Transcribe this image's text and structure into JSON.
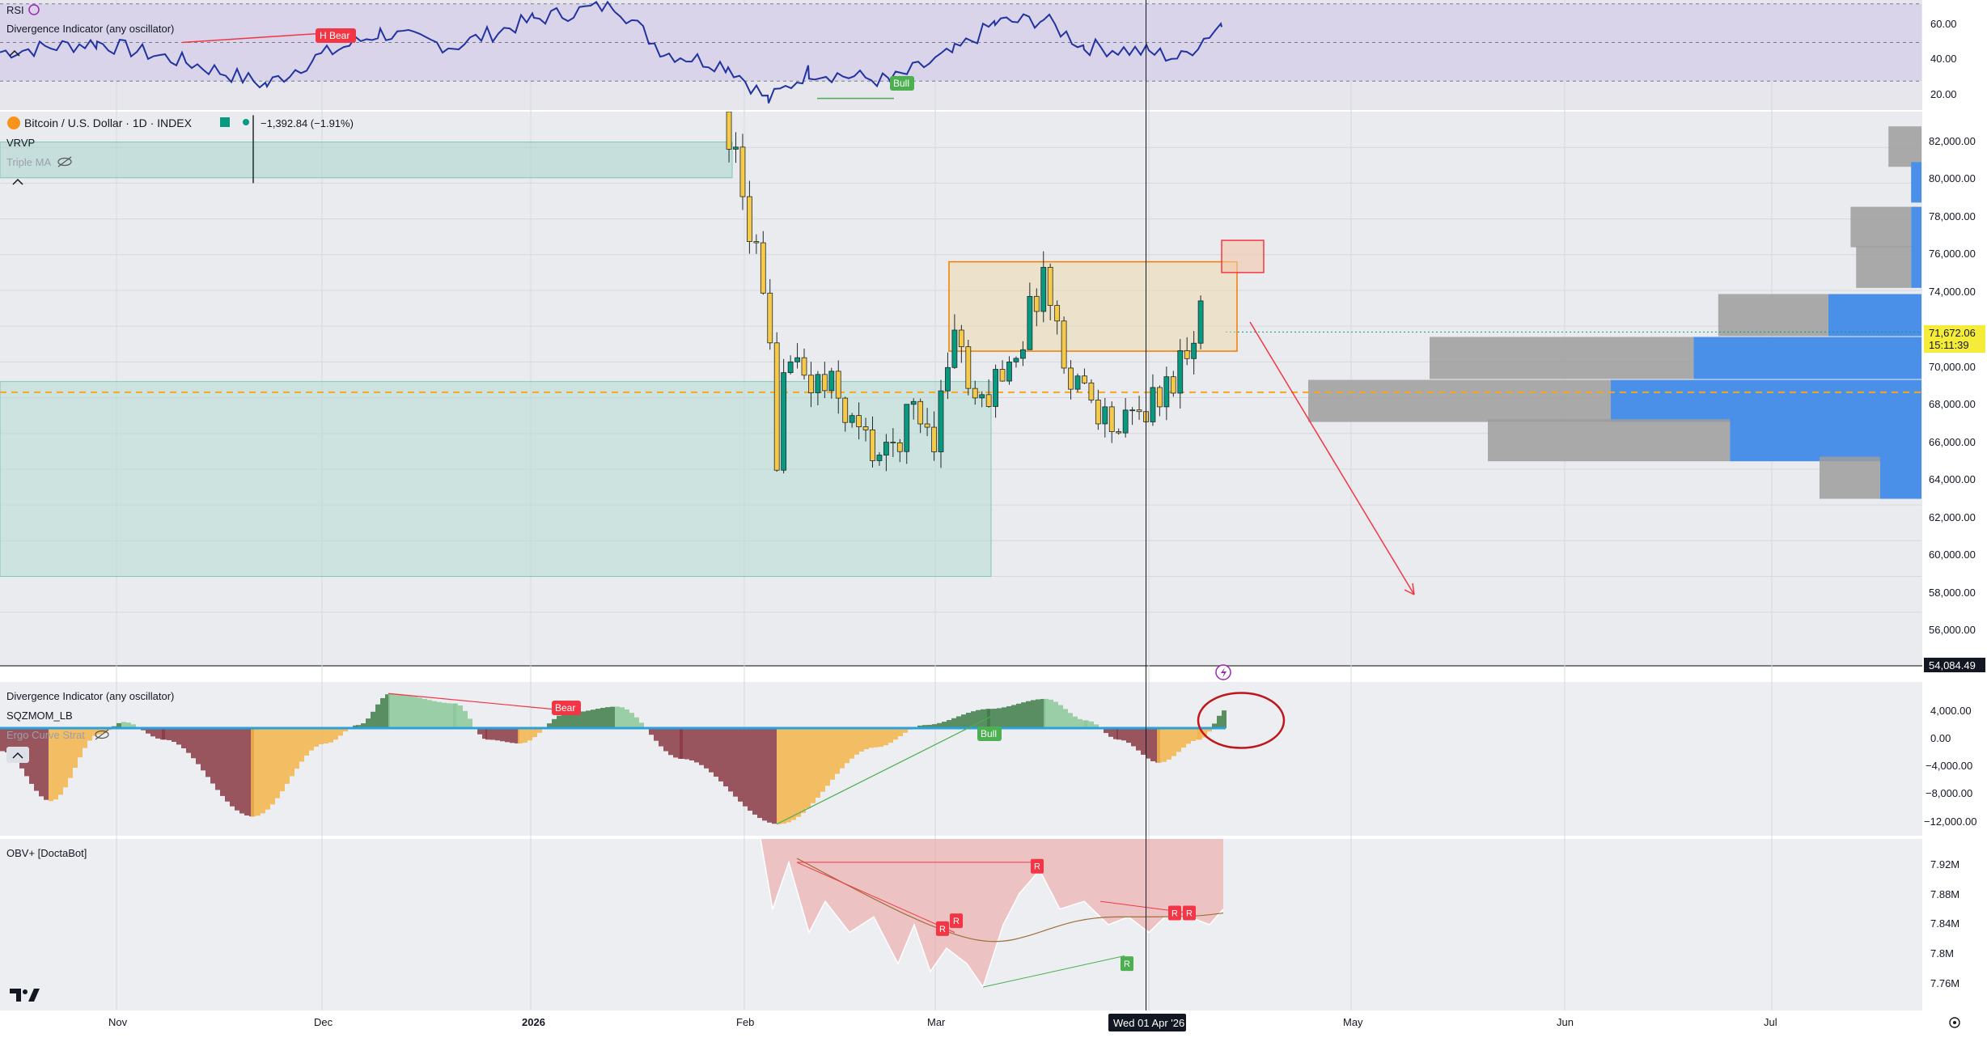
{
  "symbol": {
    "name": "Bitcoin / U.S. Dollar · 1D · INDEX",
    "change": "−1,392.84 (−1.91%)"
  },
  "indicators": {
    "rsi_title": "RSI",
    "rsi_div_title": "Divergence Indicator (any oscillator)",
    "vrvp": "VRVP",
    "triple_ma": "Triple MA",
    "mom_div_title": "Divergence Indicator (any oscillator)",
    "sqzmom": "SQZMOM_LB",
    "ergo": "Ergo Curve Strat",
    "obv_title": "OBV+ [DoctaBot]"
  },
  "price_axis": {
    "ticks": [
      "82,000.00",
      "80,000.00",
      "78,000.00",
      "76,000.00",
      "74,000.00",
      "72,000.00",
      "70,000.00",
      "68,000.00",
      "66,000.00",
      "64,000.00",
      "62,000.00",
      "60,000.00",
      "58,000.00",
      "56,000.00"
    ],
    "last_price": "71,672.06",
    "countdown": "15:11:39",
    "bottom_label": "54,084.49"
  },
  "rsi_axis": {
    "ticks": [
      "60.00",
      "40.00",
      "20.00"
    ]
  },
  "mom_axis": {
    "ticks": [
      "4,000.00",
      "0.00",
      "−4,000.00",
      "−8,000.00",
      "−12,000.00"
    ]
  },
  "obv_axis": {
    "ticks": [
      "7.92M",
      "7.88M",
      "7.84M",
      "7.8M",
      "7.76M"
    ]
  },
  "time_axis": {
    "ticks": [
      "Nov",
      "Dec",
      "2026",
      "Feb",
      "Mar",
      "May",
      "Jun",
      "Jul"
    ],
    "crosshair": "Wed 01 Apr '26"
  },
  "badges": {
    "h_bear": "H Bear",
    "bull_rsi": "Bull",
    "bear_mom": "Bear",
    "bull_mom": "Bull",
    "obv_r": "R"
  },
  "colors": {
    "up": "#089981",
    "down": "#f7c948",
    "rsi_line": "#2233a0",
    "orange_box": "#f57c00",
    "red_arrow": "#f23645",
    "vp_up": "#4a8fe8",
    "vp_down": "#9e9e9e"
  },
  "chart_data": {
    "type": "candlestick",
    "title": "Bitcoin / U.S. Dollar · 1D · INDEX",
    "ylim": [
      53000,
      84000
    ],
    "close_path": [
      {
        "d": "2026-01-30",
        "v": 83000
      },
      {
        "d": "2026-02-01",
        "v": 79000
      },
      {
        "d": "2026-02-03",
        "v": 76000
      },
      {
        "d": "2026-02-05",
        "v": 70000
      },
      {
        "d": "2026-02-06",
        "v": 63000
      },
      {
        "d": "2026-02-07",
        "v": 70500
      },
      {
        "d": "2026-02-10",
        "v": 69000
      },
      {
        "d": "2026-02-14",
        "v": 68500
      },
      {
        "d": "2026-02-18",
        "v": 66000
      },
      {
        "d": "2026-02-22",
        "v": 64500
      },
      {
        "d": "2026-02-26",
        "v": 67500
      },
      {
        "d": "2026-03-01",
        "v": 66000
      },
      {
        "d": "2026-03-04",
        "v": 72000
      },
      {
        "d": "2026-03-07",
        "v": 67000
      },
      {
        "d": "2026-03-10",
        "v": 69000
      },
      {
        "d": "2026-03-14",
        "v": 71500
      },
      {
        "d": "2026-03-17",
        "v": 75000
      },
      {
        "d": "2026-03-20",
        "v": 70000
      },
      {
        "d": "2026-03-24",
        "v": 68000
      },
      {
        "d": "2026-03-28",
        "v": 66000
      },
      {
        "d": "2026-04-01",
        "v": 67500
      },
      {
        "d": "2026-04-04",
        "v": 68500
      },
      {
        "d": "2026-04-07",
        "v": 71000
      },
      {
        "d": "2026-04-09",
        "v": 73000
      },
      {
        "d": "2026-04-10",
        "v": 71672
      }
    ],
    "last_price": 71672.06,
    "dashed_level": 68300,
    "resistance_box": [
      70600,
      75600
    ],
    "target_box": [
      75000,
      76800
    ],
    "volume_profile": [
      {
        "price": 82000,
        "up": 0,
        "down": 12
      },
      {
        "price": 80000,
        "up": 4,
        "down": 0
      },
      {
        "price": 77500,
        "up": 4,
        "down": 22
      },
      {
        "price": 75500,
        "up": 4,
        "down": 20
      },
      {
        "price": 72800,
        "up": 36,
        "down": 40
      },
      {
        "price": 70400,
        "up": 88,
        "down": 96
      },
      {
        "price": 68000,
        "up": 120,
        "down": 110
      },
      {
        "price": 65800,
        "up": 74,
        "down": 88
      },
      {
        "price": 63700,
        "up": 16,
        "down": 22
      }
    ],
    "rsi": {
      "ylim": [
        15,
        72
      ],
      "levels": [
        70,
        50,
        30
      ]
    },
    "momentum": {
      "ylim": [
        -14000,
        6000
      ]
    },
    "obv": {
      "ylim": [
        7.74,
        7.96
      ]
    }
  }
}
